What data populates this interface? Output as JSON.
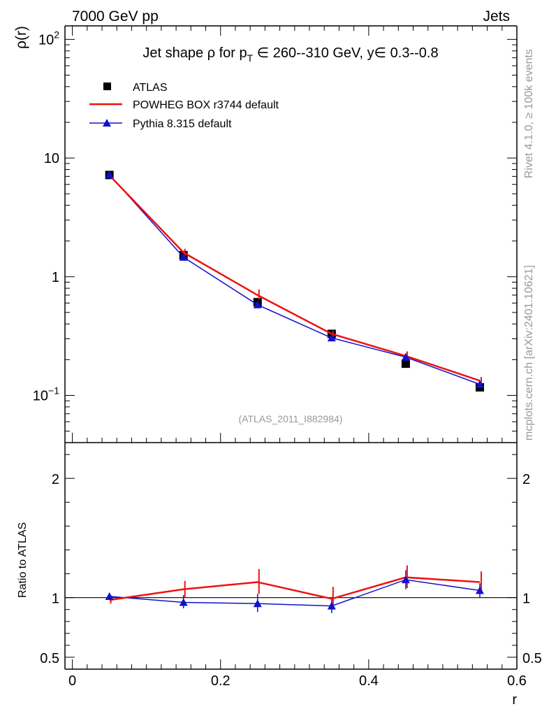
{
  "header": {
    "left": "7000 GeV pp",
    "right": "Jets"
  },
  "side_text": {
    "rivet": "Rivet 4.1.0, ≥ 100k events",
    "mcplots": "mcplots.cern.ch [arXiv:2401.10621]"
  },
  "colors": {
    "atlas": "#000000",
    "powheg": "#ee1111",
    "pythia": "#1111cc",
    "watermark": "#999999"
  },
  "chart_data": [
    {
      "type": "line",
      "panel": "main",
      "title": {
        "prefix": "Jet shape ρ for p",
        "sub": "T",
        "suffix": " ∈ 260--310 GeV, y∈ 0.3--0.8"
      },
      "ylabel": "ρ(r)",
      "yscale": "log",
      "ylim": [
        0.04,
        130
      ],
      "xlim": [
        -0.01,
        0.6
      ],
      "yticks": [
        {
          "value": 0.1,
          "base": "10",
          "exp": "−1"
        },
        {
          "value": 1,
          "label": "1"
        },
        {
          "value": 10,
          "label": "10"
        },
        {
          "value": 100,
          "base": "10",
          "exp": "2"
        }
      ],
      "x": [
        0.05,
        0.15,
        0.25,
        0.35,
        0.45,
        0.55
      ],
      "series": [
        {
          "name": "ATLAS",
          "marker": "square",
          "values": [
            7.2,
            1.52,
            0.61,
            0.33,
            0.185,
            0.117
          ]
        },
        {
          "name": "POWHEG BOX r3744 default",
          "marker": "line",
          "values": [
            7.15,
            1.6,
            0.7,
            0.33,
            0.215,
            0.133
          ],
          "err_lo": [
            6.9,
            1.5,
            0.64,
            0.31,
            0.2,
            0.125
          ],
          "err_hi": [
            7.4,
            1.72,
            0.78,
            0.35,
            0.235,
            0.143
          ]
        },
        {
          "name": "Pythia 8.315 default",
          "marker": "triangle",
          "values": [
            7.25,
            1.46,
            0.58,
            0.305,
            0.21,
            0.124
          ],
          "err_lo": [
            7.0,
            1.4,
            0.55,
            0.29,
            0.195,
            0.116
          ],
          "err_hi": [
            7.5,
            1.52,
            0.61,
            0.32,
            0.225,
            0.132
          ]
        }
      ],
      "annotation": "(ATLAS_2011_I882984)"
    },
    {
      "type": "line",
      "panel": "ratio",
      "ylabel": "Ratio to ATLAS",
      "xlabel": "r",
      "ylim": [
        0.4,
        2.3
      ],
      "xlim": [
        -0.01,
        0.6
      ],
      "yticks": [
        {
          "value": 0.5,
          "label": "0.5"
        },
        {
          "value": 1,
          "label": "1"
        },
        {
          "value": 2,
          "label": "2"
        }
      ],
      "xticks": [
        {
          "value": 0,
          "label": "0"
        },
        {
          "value": 0.2,
          "label": "0.2"
        },
        {
          "value": 0.4,
          "label": "0.4"
        },
        {
          "value": 0.6,
          "label": "0.6"
        }
      ],
      "x": [
        0.05,
        0.15,
        0.25,
        0.35,
        0.45,
        0.55
      ],
      "reference": 1,
      "series": [
        {
          "name": "POWHEG BOX r3744 default",
          "values": [
            0.98,
            1.07,
            1.13,
            0.99,
            1.17,
            1.13
          ],
          "err_lo": [
            0.95,
            1.0,
            1.03,
            0.9,
            1.08,
            1.05
          ],
          "err_hi": [
            1.02,
            1.14,
            1.24,
            1.09,
            1.27,
            1.22
          ]
        },
        {
          "name": "Pythia 8.315 default",
          "values": [
            1.01,
            0.96,
            0.95,
            0.93,
            1.15,
            1.06
          ],
          "err_lo": [
            0.98,
            0.91,
            0.88,
            0.87,
            1.07,
            1.0
          ],
          "err_hi": [
            1.04,
            1.02,
            1.03,
            1.0,
            1.23,
            1.12
          ]
        }
      ]
    }
  ]
}
